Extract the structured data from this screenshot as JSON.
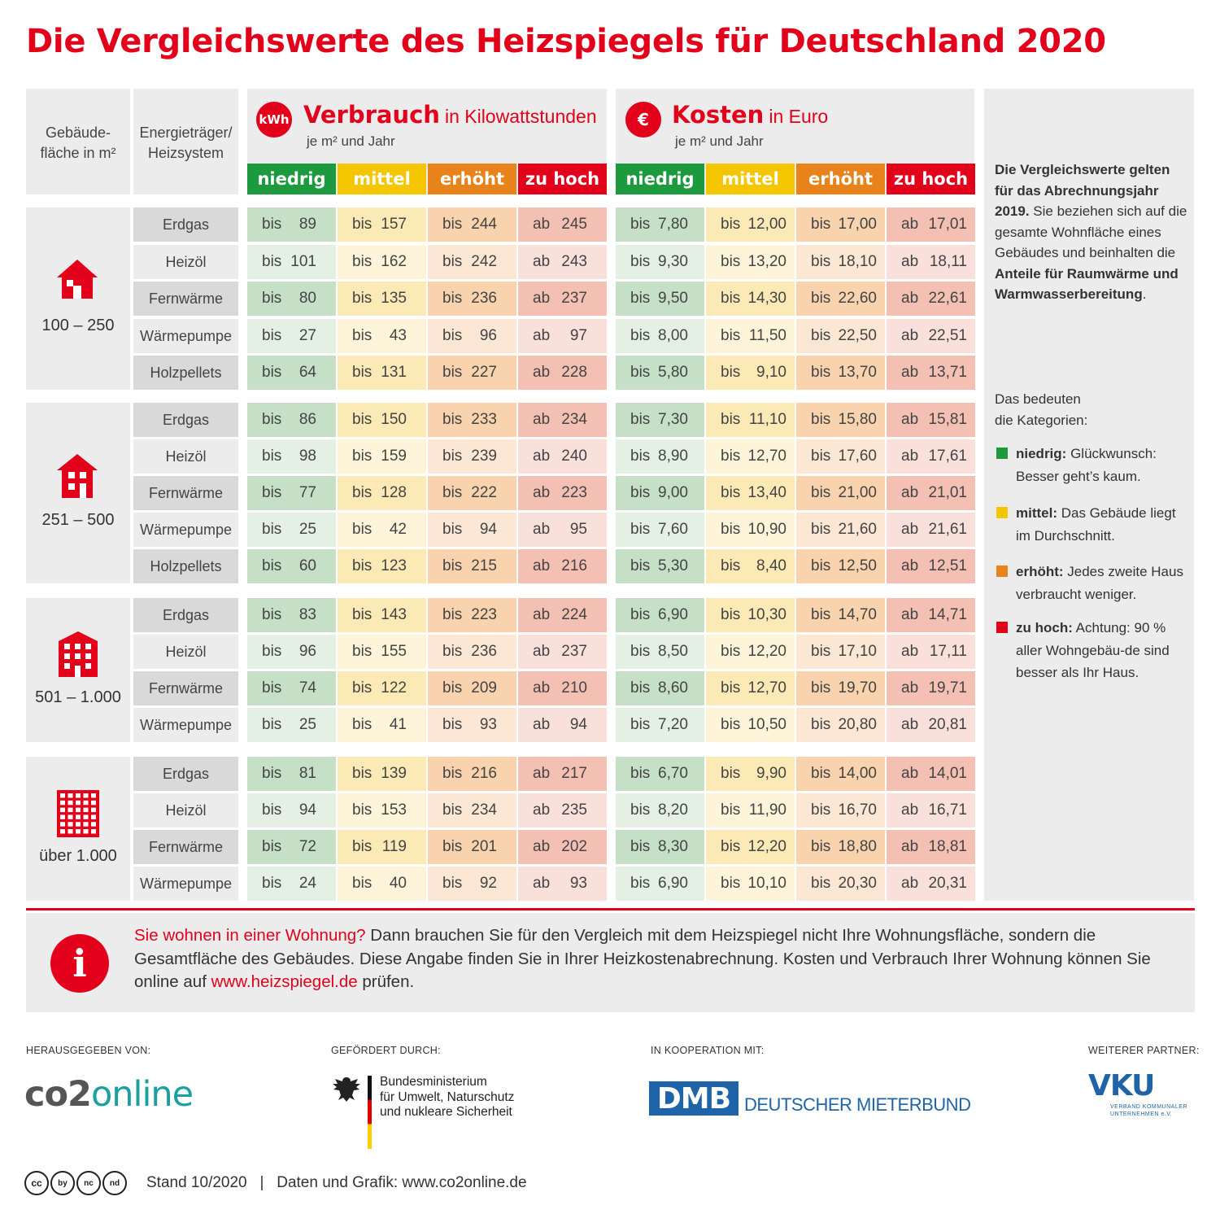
{
  "title": "Die Vergleichswerte des Heizspiegels für Deutschland 2020",
  "header": {
    "col_size": "Gebäude-\nfläche in m²",
    "col_energy": "Energieträger/\nHeizsystem",
    "verbrauch": {
      "icon": "kWh",
      "title": "Verbrauch",
      "unit": "in Kilowattstunden",
      "sub": "je m² und Jahr"
    },
    "kosten": {
      "icon": "€",
      "title": "Kosten",
      "unit": "in Euro",
      "sub": "je m² und Jahr"
    },
    "categories": [
      "niedrig",
      "mittel",
      "erhöht",
      "zu hoch"
    ]
  },
  "groups": [
    {
      "size": "100 – 250",
      "icon": "house-icon",
      "rows": [
        {
          "energy": "Erdgas",
          "v": [
            [
              "bis",
              "89"
            ],
            [
              "bis",
              "157"
            ],
            [
              "bis",
              "244"
            ],
            [
              "ab",
              "245"
            ]
          ],
          "k": [
            [
              "bis",
              "7,80"
            ],
            [
              "bis",
              "12,00"
            ],
            [
              "bis",
              "17,00"
            ],
            [
              "ab",
              "17,01"
            ]
          ]
        },
        {
          "energy": "Heizöl",
          "v": [
            [
              "bis",
              "101"
            ],
            [
              "bis",
              "162"
            ],
            [
              "bis",
              "242"
            ],
            [
              "ab",
              "243"
            ]
          ],
          "k": [
            [
              "bis",
              "9,30"
            ],
            [
              "bis",
              "13,20"
            ],
            [
              "bis",
              "18,10"
            ],
            [
              "ab",
              "18,11"
            ]
          ]
        },
        {
          "energy": "Fernwärme",
          "v": [
            [
              "bis",
              "80"
            ],
            [
              "bis",
              "135"
            ],
            [
              "bis",
              "236"
            ],
            [
              "ab",
              "237"
            ]
          ],
          "k": [
            [
              "bis",
              "9,50"
            ],
            [
              "bis",
              "14,30"
            ],
            [
              "bis",
              "22,60"
            ],
            [
              "ab",
              "22,61"
            ]
          ]
        },
        {
          "energy": "Wärmepumpe",
          "v": [
            [
              "bis",
              "27"
            ],
            [
              "bis",
              "43"
            ],
            [
              "bis",
              "96"
            ],
            [
              "ab",
              "97"
            ]
          ],
          "k": [
            [
              "bis",
              "8,00"
            ],
            [
              "bis",
              "11,50"
            ],
            [
              "bis",
              "22,50"
            ],
            [
              "ab",
              "22,51"
            ]
          ]
        },
        {
          "energy": "Holzpellets",
          "v": [
            [
              "bis",
              "64"
            ],
            [
              "bis",
              "131"
            ],
            [
              "bis",
              "227"
            ],
            [
              "ab",
              "228"
            ]
          ],
          "k": [
            [
              "bis",
              "5,80"
            ],
            [
              "bis",
              "9,10"
            ],
            [
              "bis",
              "13,70"
            ],
            [
              "ab",
              "13,71"
            ]
          ]
        }
      ]
    },
    {
      "size": "251 – 500",
      "icon": "apartment-house-icon",
      "rows": [
        {
          "energy": "Erdgas",
          "v": [
            [
              "bis",
              "86"
            ],
            [
              "bis",
              "150"
            ],
            [
              "bis",
              "233"
            ],
            [
              "ab",
              "234"
            ]
          ],
          "k": [
            [
              "bis",
              "7,30"
            ],
            [
              "bis",
              "11,10"
            ],
            [
              "bis",
              "15,80"
            ],
            [
              "ab",
              "15,81"
            ]
          ]
        },
        {
          "energy": "Heizöl",
          "v": [
            [
              "bis",
              "98"
            ],
            [
              "bis",
              "159"
            ],
            [
              "bis",
              "239"
            ],
            [
              "ab",
              "240"
            ]
          ],
          "k": [
            [
              "bis",
              "8,90"
            ],
            [
              "bis",
              "12,70"
            ],
            [
              "bis",
              "17,60"
            ],
            [
              "ab",
              "17,61"
            ]
          ]
        },
        {
          "energy": "Fernwärme",
          "v": [
            [
              "bis",
              "77"
            ],
            [
              "bis",
              "128"
            ],
            [
              "bis",
              "222"
            ],
            [
              "ab",
              "223"
            ]
          ],
          "k": [
            [
              "bis",
              "9,00"
            ],
            [
              "bis",
              "13,40"
            ],
            [
              "bis",
              "21,00"
            ],
            [
              "ab",
              "21,01"
            ]
          ]
        },
        {
          "energy": "Wärmepumpe",
          "v": [
            [
              "bis",
              "25"
            ],
            [
              "bis",
              "42"
            ],
            [
              "bis",
              "94"
            ],
            [
              "ab",
              "95"
            ]
          ],
          "k": [
            [
              "bis",
              "7,60"
            ],
            [
              "bis",
              "10,90"
            ],
            [
              "bis",
              "21,60"
            ],
            [
              "ab",
              "21,61"
            ]
          ]
        },
        {
          "energy": "Holzpellets",
          "v": [
            [
              "bis",
              "60"
            ],
            [
              "bis",
              "123"
            ],
            [
              "bis",
              "215"
            ],
            [
              "ab",
              "216"
            ]
          ],
          "k": [
            [
              "bis",
              "5,30"
            ],
            [
              "bis",
              "8,40"
            ],
            [
              "bis",
              "12,50"
            ],
            [
              "ab",
              "12,51"
            ]
          ]
        }
      ]
    },
    {
      "size": "501 – 1.000",
      "icon": "building-icon",
      "rows": [
        {
          "energy": "Erdgas",
          "v": [
            [
              "bis",
              "83"
            ],
            [
              "bis",
              "143"
            ],
            [
              "bis",
              "223"
            ],
            [
              "ab",
              "224"
            ]
          ],
          "k": [
            [
              "bis",
              "6,90"
            ],
            [
              "bis",
              "10,30"
            ],
            [
              "bis",
              "14,70"
            ],
            [
              "ab",
              "14,71"
            ]
          ]
        },
        {
          "energy": "Heizöl",
          "v": [
            [
              "bis",
              "96"
            ],
            [
              "bis",
              "155"
            ],
            [
              "bis",
              "236"
            ],
            [
              "ab",
              "237"
            ]
          ],
          "k": [
            [
              "bis",
              "8,50"
            ],
            [
              "bis",
              "12,20"
            ],
            [
              "bis",
              "17,10"
            ],
            [
              "ab",
              "17,11"
            ]
          ]
        },
        {
          "energy": "Fernwärme",
          "v": [
            [
              "bis",
              "74"
            ],
            [
              "bis",
              "122"
            ],
            [
              "bis",
              "209"
            ],
            [
              "ab",
              "210"
            ]
          ],
          "k": [
            [
              "bis",
              "8,60"
            ],
            [
              "bis",
              "12,70"
            ],
            [
              "bis",
              "19,70"
            ],
            [
              "ab",
              "19,71"
            ]
          ]
        },
        {
          "energy": "Wärmepumpe",
          "v": [
            [
              "bis",
              "25"
            ],
            [
              "bis",
              "41"
            ],
            [
              "bis",
              "93"
            ],
            [
              "ab",
              "94"
            ]
          ],
          "k": [
            [
              "bis",
              "7,20"
            ],
            [
              "bis",
              "10,50"
            ],
            [
              "bis",
              "20,80"
            ],
            [
              "ab",
              "20,81"
            ]
          ]
        }
      ]
    },
    {
      "size": "über 1.000",
      "icon": "highrise-icon",
      "rows": [
        {
          "energy": "Erdgas",
          "v": [
            [
              "bis",
              "81"
            ],
            [
              "bis",
              "139"
            ],
            [
              "bis",
              "216"
            ],
            [
              "ab",
              "217"
            ]
          ],
          "k": [
            [
              "bis",
              "6,70"
            ],
            [
              "bis",
              "9,90"
            ],
            [
              "bis",
              "14,00"
            ],
            [
              "ab",
              "14,01"
            ]
          ]
        },
        {
          "energy": "Heizöl",
          "v": [
            [
              "bis",
              "94"
            ],
            [
              "bis",
              "153"
            ],
            [
              "bis",
              "234"
            ],
            [
              "ab",
              "235"
            ]
          ],
          "k": [
            [
              "bis",
              "8,20"
            ],
            [
              "bis",
              "11,90"
            ],
            [
              "bis",
              "16,70"
            ],
            [
              "ab",
              "16,71"
            ]
          ]
        },
        {
          "energy": "Fernwärme",
          "v": [
            [
              "bis",
              "72"
            ],
            [
              "bis",
              "119"
            ],
            [
              "bis",
              "201"
            ],
            [
              "ab",
              "202"
            ]
          ],
          "k": [
            [
              "bis",
              "8,30"
            ],
            [
              "bis",
              "12,20"
            ],
            [
              "bis",
              "18,80"
            ],
            [
              "ab",
              "18,81"
            ]
          ]
        },
        {
          "energy": "Wärmepumpe",
          "v": [
            [
              "bis",
              "24"
            ],
            [
              "bis",
              "40"
            ],
            [
              "bis",
              "92"
            ],
            [
              "ab",
              "93"
            ]
          ],
          "k": [
            [
              "bis",
              "6,90"
            ],
            [
              "bis",
              "10,10"
            ],
            [
              "bis",
              "20,30"
            ],
            [
              "ab",
              "20,31"
            ]
          ]
        }
      ]
    }
  ],
  "sidebar": {
    "intro_bold": "Die Vergleichswerte gelten für das Abrechnungsjahr 2019.",
    "intro_1": "Sie beziehen sich auf die gesamte Wohnfläche eines Gebäudes und beinhalten die ",
    "intro_bold2": "Anteile für Raumwärme und Warmwasserbereitung",
    "intro_end": ".",
    "legend_title": "Das bedeuten die Kategorien:",
    "legend": [
      {
        "bold": "niedrig:",
        "text": " Glückwunsch: Besser geht’s kaum.",
        "color": "#1d9a3e"
      },
      {
        "bold": "mittel:",
        "text": " Das Gebäude liegt im Durchschnitt.",
        "color": "#f4c600"
      },
      {
        "bold": "erhöht:",
        "text": " Jedes zweite Haus verbraucht weniger.",
        "color": "#e8821b"
      },
      {
        "bold": "zu hoch:",
        "text": " Achtung: 90 % aller Wohngebäu-de sind besser als Ihr Haus.",
        "color": "#e2001a"
      }
    ]
  },
  "info": {
    "icon": "i",
    "lead": "Sie wohnen in einer Wohnung?",
    "text": " Dann brauchen Sie für den Vergleich mit dem Heizspiegel nicht Ihre Wohnungsfläche, sondern die Gesamtfläche des Gebäudes. Diese Angabe finden Sie in Ihrer Heizkostenabrechnung. Kosten und Verbrauch Ihrer Wohnung können Sie online auf ",
    "link": "www.heizspiegel.de",
    "end": " prüfen."
  },
  "partners": {
    "label_publisher": "HERAUSGEGEBEN VON:",
    "label_funded": "GEFÖRDERT DURCH:",
    "label_coop": "IN KOOPERATION MIT:",
    "label_partner": "WEITERER PARTNER:",
    "co2_a": "co2",
    "co2_b": "online",
    "bmu": "Bundesministerium\nfür Umwelt, Naturschutz\nund nukleare Sicherheit",
    "dmb": "DMB",
    "dmb_text": "DEUTSCHER MIETERBUND",
    "vku": "VKU",
    "vku_sub": "VERBAND KOMMUNALER\nUNTERNEHMEN e.V."
  },
  "footer": {
    "cc": [
      "cc",
      "by",
      "nc",
      "nd"
    ],
    "text": "Stand 10/2020   |   Daten und Grafik: www.co2online.de"
  }
}
